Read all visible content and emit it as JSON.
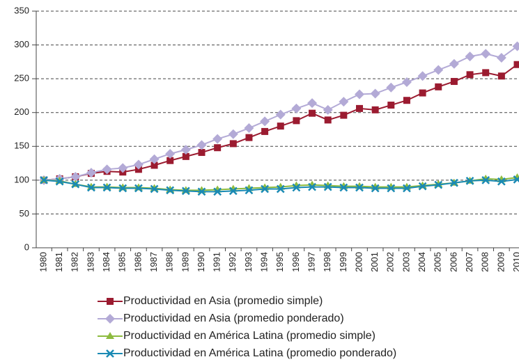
{
  "chart_data": {
    "type": "line",
    "categories": [
      "1980",
      "1981",
      "1982",
      "1983",
      "1984",
      "1985",
      "1986",
      "1987",
      "1988",
      "1989",
      "1990",
      "1991",
      "1992",
      "1993",
      "1994",
      "1995",
      "1996",
      "1997",
      "1998",
      "1999",
      "2000",
      "2001",
      "2002",
      "2003",
      "2004",
      "2005",
      "2006",
      "2007",
      "2008",
      "2009",
      "2010"
    ],
    "series": [
      {
        "name": "Productividad en Asia (promedio simple)",
        "color": "#9b1b30",
        "marker": "square",
        "values": [
          100,
          102,
          105,
          110,
          113,
          112,
          116,
          122,
          129,
          135,
          141,
          148,
          154,
          163,
          172,
          180,
          188,
          199,
          189,
          196,
          206,
          204,
          211,
          218,
          229,
          238,
          246,
          256,
          259,
          254,
          271
        ]
      },
      {
        "name": "Productividad en Asia (promedio ponderado)",
        "color": "#b3aad6",
        "marker": "diamond",
        "values": [
          100,
          102,
          105,
          111,
          116,
          118,
          123,
          131,
          139,
          145,
          152,
          161,
          168,
          177,
          187,
          197,
          206,
          214,
          204,
          216,
          227,
          228,
          237,
          245,
          254,
          263,
          272,
          283,
          287,
          281,
          298
        ]
      },
      {
        "name": "Productividad en América Latina (promedio simple)",
        "color": "#8dbb3f",
        "marker": "triangle",
        "values": [
          100,
          99,
          94,
          90,
          90,
          89,
          89,
          88,
          86,
          85,
          85,
          86,
          87,
          88,
          89,
          90,
          92,
          93,
          92,
          91,
          91,
          90,
          90,
          90,
          92,
          94,
          96,
          99,
          102,
          101,
          104
        ]
      },
      {
        "name": "Productividad en América Latina (promedio ponderado)",
        "color": "#1a8ab4",
        "marker": "x",
        "values": [
          100,
          98,
          94,
          89,
          89,
          88,
          88,
          87,
          85,
          84,
          83,
          83,
          84,
          85,
          87,
          87,
          89,
          90,
          90,
          89,
          89,
          88,
          88,
          88,
          91,
          93,
          96,
          99,
          100,
          98,
          101
        ]
      }
    ],
    "ylim": [
      0,
      350
    ],
    "yticks": [
      0,
      50,
      100,
      150,
      200,
      250,
      300,
      350
    ],
    "grid": true,
    "legend": "bottom"
  }
}
